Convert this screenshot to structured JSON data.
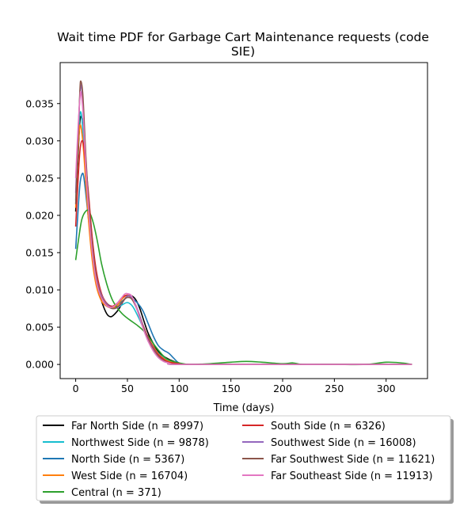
{
  "chart_data": {
    "type": "line",
    "title_line1": "Wait time PDF for Garbage Cart Maintenance  requests (code",
    "title_line2": "SIE)",
    "xlabel": "Time (days)",
    "ylabel": "",
    "xlim": [
      -15,
      340
    ],
    "ylim": [
      -0.0019,
      0.0405
    ],
    "x_ticks": [
      0,
      50,
      100,
      150,
      200,
      250,
      300
    ],
    "y_ticks": [
      0.0,
      0.005,
      0.01,
      0.015,
      0.02,
      0.025,
      0.03,
      0.035
    ],
    "x_tick_labels": [
      "0",
      "50",
      "100",
      "150",
      "200",
      "250",
      "300"
    ],
    "y_tick_labels": [
      "0.000",
      "0.005",
      "0.010",
      "0.015",
      "0.020",
      "0.025",
      "0.030",
      "0.035"
    ],
    "grid": false,
    "legend": {
      "placement": "below",
      "columns": 2
    },
    "series": [
      {
        "name": "Far North Side (n = 8997)",
        "color": "#000000",
        "points": [
          [
            0,
            0.0205
          ],
          [
            2,
            0.027
          ],
          [
            4,
            0.0325
          ],
          [
            6,
            0.033
          ],
          [
            8,
            0.03
          ],
          [
            12,
            0.022
          ],
          [
            16,
            0.015
          ],
          [
            20,
            0.011
          ],
          [
            25,
            0.0085
          ],
          [
            30,
            0.0068
          ],
          [
            34,
            0.0064
          ],
          [
            38,
            0.0068
          ],
          [
            42,
            0.0075
          ],
          [
            46,
            0.0085
          ],
          [
            50,
            0.0092
          ],
          [
            54,
            0.0092
          ],
          [
            58,
            0.0087
          ],
          [
            62,
            0.0075
          ],
          [
            66,
            0.0058
          ],
          [
            70,
            0.0042
          ],
          [
            75,
            0.0028
          ],
          [
            80,
            0.0017
          ],
          [
            85,
            0.0011
          ],
          [
            90,
            0.0007
          ],
          [
            95,
            0.0004
          ],
          [
            100,
            0.0001
          ],
          [
            110,
            0.0
          ],
          [
            150,
            0.0
          ],
          [
            200,
            0.0
          ],
          [
            250,
            0.0
          ],
          [
            300,
            0.0
          ],
          [
            325,
            0.0
          ]
        ]
      },
      {
        "name": "Northwest Side (n = 9878)",
        "color": "#17becf",
        "points": [
          [
            0,
            0.022
          ],
          [
            2,
            0.028
          ],
          [
            4,
            0.0335
          ],
          [
            6,
            0.033
          ],
          [
            8,
            0.029
          ],
          [
            12,
            0.021
          ],
          [
            16,
            0.015
          ],
          [
            20,
            0.0115
          ],
          [
            25,
            0.0092
          ],
          [
            30,
            0.0082
          ],
          [
            35,
            0.0077
          ],
          [
            40,
            0.0076
          ],
          [
            45,
            0.008
          ],
          [
            50,
            0.0083
          ],
          [
            55,
            0.0078
          ],
          [
            60,
            0.0065
          ],
          [
            65,
            0.005
          ],
          [
            70,
            0.0035
          ],
          [
            75,
            0.0024
          ],
          [
            80,
            0.0015
          ],
          [
            85,
            0.0009
          ],
          [
            90,
            0.0005
          ],
          [
            100,
            0.0001
          ],
          [
            110,
            0.0
          ],
          [
            200,
            0.0
          ],
          [
            325,
            0.0
          ]
        ]
      },
      {
        "name": "North Side (n = 5367)",
        "color": "#1f77b4",
        "points": [
          [
            0,
            0.0155
          ],
          [
            2,
            0.02
          ],
          [
            4,
            0.024
          ],
          [
            6,
            0.0255
          ],
          [
            8,
            0.025
          ],
          [
            12,
            0.02
          ],
          [
            16,
            0.015
          ],
          [
            20,
            0.0115
          ],
          [
            25,
            0.0092
          ],
          [
            30,
            0.0082
          ],
          [
            35,
            0.0078
          ],
          [
            40,
            0.008
          ],
          [
            45,
            0.0085
          ],
          [
            50,
            0.009
          ],
          [
            55,
            0.0088
          ],
          [
            60,
            0.0082
          ],
          [
            65,
            0.0072
          ],
          [
            70,
            0.0055
          ],
          [
            75,
            0.0038
          ],
          [
            80,
            0.0025
          ],
          [
            85,
            0.0019
          ],
          [
            90,
            0.0015
          ],
          [
            95,
            0.0008
          ],
          [
            100,
            0.0002
          ],
          [
            110,
            0.0
          ],
          [
            200,
            0.0
          ],
          [
            325,
            0.0
          ]
        ]
      },
      {
        "name": "West Side (n = 16704)",
        "color": "#ff7f0e",
        "points": [
          [
            0,
            0.021
          ],
          [
            2,
            0.028
          ],
          [
            4,
            0.032
          ],
          [
            6,
            0.031
          ],
          [
            8,
            0.028
          ],
          [
            12,
            0.02
          ],
          [
            16,
            0.014
          ],
          [
            20,
            0.0105
          ],
          [
            25,
            0.0085
          ],
          [
            30,
            0.0078
          ],
          [
            35,
            0.0076
          ],
          [
            40,
            0.0079
          ],
          [
            45,
            0.0088
          ],
          [
            50,
            0.0093
          ],
          [
            55,
            0.0088
          ],
          [
            60,
            0.0072
          ],
          [
            65,
            0.0052
          ],
          [
            70,
            0.0036
          ],
          [
            75,
            0.0024
          ],
          [
            80,
            0.0014
          ],
          [
            85,
            0.0008
          ],
          [
            90,
            0.0004
          ],
          [
            100,
            0.0001
          ],
          [
            110,
            0.0
          ],
          [
            200,
            0.0
          ],
          [
            325,
            0.0
          ]
        ]
      },
      {
        "name": "Central (n = 371)",
        "color": "#2ca02c",
        "points": [
          [
            0,
            0.014
          ],
          [
            3,
            0.017
          ],
          [
            6,
            0.0195
          ],
          [
            10,
            0.0206
          ],
          [
            13,
            0.0205
          ],
          [
            17,
            0.019
          ],
          [
            21,
            0.0165
          ],
          [
            25,
            0.0135
          ],
          [
            30,
            0.0108
          ],
          [
            35,
            0.0088
          ],
          [
            40,
            0.0076
          ],
          [
            45,
            0.0068
          ],
          [
            50,
            0.0062
          ],
          [
            55,
            0.0057
          ],
          [
            60,
            0.0052
          ],
          [
            65,
            0.0046
          ],
          [
            70,
            0.0038
          ],
          [
            75,
            0.0028
          ],
          [
            80,
            0.0019
          ],
          [
            85,
            0.0011
          ],
          [
            90,
            0.0006
          ],
          [
            100,
            0.0002
          ],
          [
            110,
            0.0
          ],
          [
            130,
            0.0001
          ],
          [
            150,
            0.0003
          ],
          [
            165,
            0.0004
          ],
          [
            180,
            0.0003
          ],
          [
            200,
            0.0001
          ],
          [
            210,
            0.0002
          ],
          [
            220,
            0.0
          ],
          [
            250,
            0.0
          ],
          [
            280,
            0.0
          ],
          [
            300,
            0.0003
          ],
          [
            315,
            0.0002
          ],
          [
            325,
            0.0
          ]
        ]
      },
      {
        "name": "South Side (n = 6326)",
        "color": "#d62728",
        "points": [
          [
            0,
            0.0185
          ],
          [
            2,
            0.024
          ],
          [
            4,
            0.0285
          ],
          [
            6,
            0.03
          ],
          [
            8,
            0.029
          ],
          [
            12,
            0.0235
          ],
          [
            16,
            0.017
          ],
          [
            20,
            0.0125
          ],
          [
            25,
            0.0095
          ],
          [
            30,
            0.0082
          ],
          [
            35,
            0.0078
          ],
          [
            40,
            0.0082
          ],
          [
            45,
            0.009
          ],
          [
            50,
            0.0093
          ],
          [
            55,
            0.0087
          ],
          [
            60,
            0.0072
          ],
          [
            65,
            0.0053
          ],
          [
            70,
            0.0036
          ],
          [
            75,
            0.0023
          ],
          [
            80,
            0.0013
          ],
          [
            85,
            0.0007
          ],
          [
            90,
            0.0003
          ],
          [
            100,
            0.0001
          ],
          [
            110,
            0.0
          ],
          [
            200,
            0.0
          ],
          [
            325,
            0.0
          ]
        ]
      },
      {
        "name": "Southwest Side (n = 16008)",
        "color": "#9467bd",
        "points": [
          [
            0,
            0.023
          ],
          [
            2,
            0.03
          ],
          [
            4,
            0.036
          ],
          [
            5,
            0.0375
          ],
          [
            7,
            0.035
          ],
          [
            10,
            0.027
          ],
          [
            14,
            0.019
          ],
          [
            18,
            0.0135
          ],
          [
            22,
            0.0105
          ],
          [
            27,
            0.0087
          ],
          [
            32,
            0.0078
          ],
          [
            37,
            0.0075
          ],
          [
            42,
            0.0078
          ],
          [
            47,
            0.0087
          ],
          [
            50,
            0.0092
          ],
          [
            54,
            0.009
          ],
          [
            58,
            0.008
          ],
          [
            62,
            0.0065
          ],
          [
            66,
            0.0048
          ],
          [
            70,
            0.0034
          ],
          [
            75,
            0.0021
          ],
          [
            80,
            0.0011
          ],
          [
            85,
            0.0005
          ],
          [
            90,
            0.0002
          ],
          [
            100,
            0.0
          ],
          [
            200,
            0.0
          ],
          [
            325,
            0.0
          ]
        ]
      },
      {
        "name": "Far Southwest Side (n = 11621)",
        "color": "#8c564b",
        "points": [
          [
            0,
            0.0215
          ],
          [
            2,
            0.029
          ],
          [
            4,
            0.0365
          ],
          [
            5,
            0.038
          ],
          [
            7,
            0.036
          ],
          [
            10,
            0.0275
          ],
          [
            14,
            0.019
          ],
          [
            18,
            0.0135
          ],
          [
            22,
            0.0103
          ],
          [
            27,
            0.0085
          ],
          [
            32,
            0.0077
          ],
          [
            37,
            0.0075
          ],
          [
            42,
            0.0079
          ],
          [
            47,
            0.0087
          ],
          [
            50,
            0.009
          ],
          [
            54,
            0.0088
          ],
          [
            58,
            0.0078
          ],
          [
            62,
            0.0063
          ],
          [
            66,
            0.0047
          ],
          [
            70,
            0.0033
          ],
          [
            75,
            0.002
          ],
          [
            80,
            0.0011
          ],
          [
            85,
            0.0005
          ],
          [
            90,
            0.0002
          ],
          [
            100,
            0.0
          ],
          [
            200,
            0.0
          ],
          [
            325,
            0.0
          ]
        ]
      },
      {
        "name": "Far Southeast Side (n = 11913)",
        "color": "#e377c2",
        "points": [
          [
            0,
            0.025
          ],
          [
            2,
            0.031
          ],
          [
            4,
            0.0355
          ],
          [
            5,
            0.0365
          ],
          [
            7,
            0.034
          ],
          [
            10,
            0.026
          ],
          [
            14,
            0.018
          ],
          [
            18,
            0.0128
          ],
          [
            22,
            0.01
          ],
          [
            27,
            0.0084
          ],
          [
            32,
            0.0077
          ],
          [
            37,
            0.0078
          ],
          [
            42,
            0.0085
          ],
          [
            47,
            0.0094
          ],
          [
            50,
            0.0095
          ],
          [
            54,
            0.0092
          ],
          [
            58,
            0.0079
          ],
          [
            62,
            0.0062
          ],
          [
            66,
            0.0045
          ],
          [
            70,
            0.0031
          ],
          [
            75,
            0.0018
          ],
          [
            80,
            0.0009
          ],
          [
            85,
            0.0004
          ],
          [
            90,
            0.0002
          ],
          [
            100,
            0.0
          ],
          [
            200,
            0.0
          ],
          [
            325,
            0.0
          ]
        ]
      }
    ]
  }
}
